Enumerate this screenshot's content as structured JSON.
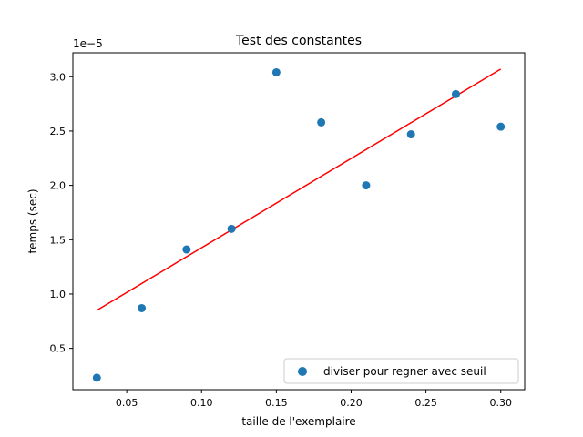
{
  "chart_data": {
    "type": "scatter",
    "title": "Test des constantes",
    "xlabel": "taille de l'exemplaire",
    "ylabel": "temps (sec)",
    "y_offset_label": "1e−5",
    "xlim": [
      0.014,
      0.316
    ],
    "ylim": [
      0.12,
      3.22
    ],
    "y_scale_factor": 1e-05,
    "x_ticks": [
      0.05,
      0.1,
      0.15,
      0.2,
      0.25,
      0.3
    ],
    "x_tick_labels": [
      "0.05",
      "0.10",
      "0.15",
      "0.20",
      "0.25",
      "0.30"
    ],
    "y_ticks": [
      0.5,
      1.0,
      1.5,
      2.0,
      2.5,
      3.0
    ],
    "y_tick_labels": [
      "0.5",
      "1.0",
      "1.5",
      "2.0",
      "2.5",
      "3.0"
    ],
    "grid": false,
    "legend_position": "lower-right",
    "series": [
      {
        "name": "diviser pour regner avec seuil",
        "kind": "scatter",
        "color": "#1f77b4",
        "x": [
          0.03,
          0.06,
          0.09,
          0.12,
          0.15,
          0.18,
          0.21,
          0.24,
          0.27,
          0.3
        ],
        "y": [
          0.23,
          0.87,
          1.41,
          1.6,
          3.04,
          2.58,
          2.0,
          2.47,
          2.84,
          2.54
        ]
      },
      {
        "kind": "line",
        "color": "#ff0000",
        "x": [
          0.03,
          0.3
        ],
        "y": [
          0.85,
          3.07
        ]
      }
    ]
  }
}
